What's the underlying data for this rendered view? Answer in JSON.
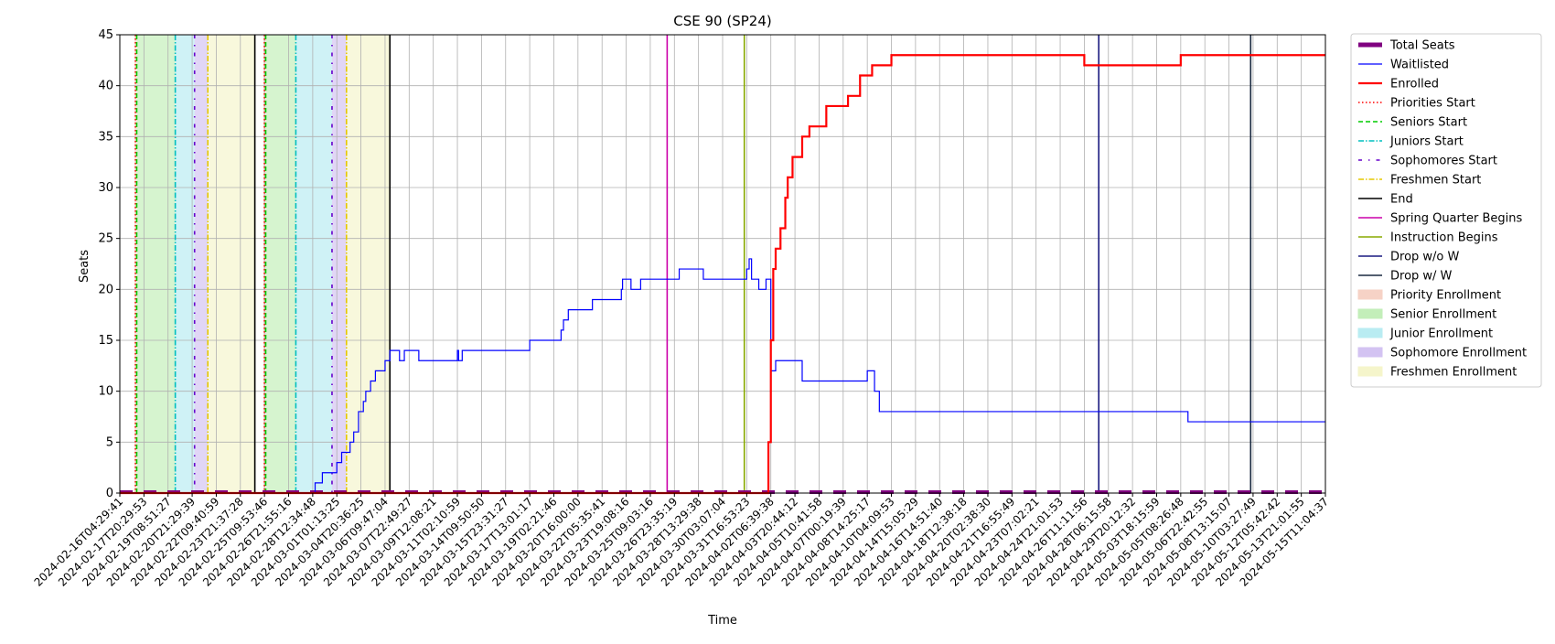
{
  "chart_data": {
    "type": "line",
    "title": "CSE 90 (SP24)",
    "xlabel": "Time",
    "ylabel": "Seats",
    "ylim": [
      0,
      45
    ],
    "y_ticks": [
      0,
      5,
      10,
      15,
      20,
      25,
      30,
      35,
      40,
      45
    ],
    "grid": true,
    "legend_position": "outside right, top",
    "x_tick_labels": [
      "2024-02-16T04:29:41",
      "2024-02-17T20:29:53",
      "2024-02-19T08:51:27",
      "2024-02-20T21:29:39",
      "2024-02-22T09:40:59",
      "2024-02-23T21:37:28",
      "2024-02-25T09:53:46",
      "2024-02-26T21:55:16",
      "2024-02-28T12:34:48",
      "2024-03-01T01:13:25",
      "2024-03-04T20:36:25",
      "2024-03-06T09:47:04",
      "2024-03-07T22:49:27",
      "2024-03-09T12:08:21",
      "2024-03-11T02:10:59",
      "2024-03-14T09:50:50",
      "2024-03-15T23:31:27",
      "2024-03-17T13:01:17",
      "2024-03-19T02:21:46",
      "2024-03-20T16:00:00",
      "2024-03-22T05:35:41",
      "2024-03-23T19:08:16",
      "2024-03-25T09:03:16",
      "2024-03-26T23:35:19",
      "2024-03-28T13:29:38",
      "2024-03-30T03:07:04",
      "2024-03-31T16:53:23",
      "2024-04-02T06:39:38",
      "2024-04-03T20:44:12",
      "2024-04-05T10:41:58",
      "2024-04-07T00:19:39",
      "2024-04-08T14:25:17",
      "2024-04-10T04:09:53",
      "2024-04-14T15:05:29",
      "2024-04-16T14:51:40",
      "2024-04-18T12:38:18",
      "2024-04-20T02:38:30",
      "2024-04-21T16:55:49",
      "2024-04-23T07:02:21",
      "2024-04-24T21:01:53",
      "2024-04-26T11:11:56",
      "2024-04-28T06:15:58",
      "2024-04-29T20:12:32",
      "2024-05-03T18:15:59",
      "2024-05-05T08:26:48",
      "2024-05-06T22:42:55",
      "2024-05-08T13:15:07",
      "2024-05-10T03:27:49",
      "2024-05-12T05:42:42",
      "2024-05-13T21:01:55",
      "2024-05-15T11:04:37"
    ],
    "series": [
      {
        "name": "Total Seats",
        "color": "#800080",
        "style": "dashed-thick",
        "x_index": [
          0,
          50
        ],
        "values": [
          0,
          0
        ]
      },
      {
        "name": "Waitlisted",
        "color": "#0000ff",
        "style": "step",
        "x_index": [
          0,
          7.6,
          8.1,
          8.4,
          8.6,
          9.0,
          9.2,
          9.45,
          9.55,
          9.7,
          9.9,
          10.1,
          10.2,
          10.4,
          10.6,
          11.0,
          11.2,
          11.4,
          11.6,
          11.8,
          12.4,
          14.0,
          14.05,
          14.2,
          17.0,
          18.3,
          18.4,
          18.6,
          19.6,
          20.8,
          20.85,
          21.2,
          21.6,
          23.2,
          24.2,
          26.0,
          26.1,
          26.2,
          26.5,
          26.8,
          27.0,
          27.2,
          28.3,
          30.8,
          31.0,
          31.3,
          31.5,
          43.0,
          44.3,
          50
        ],
        "values": [
          0,
          0,
          1,
          2,
          2,
          3,
          4,
          4,
          5,
          6,
          8,
          9,
          10,
          11,
          12,
          13,
          14,
          14,
          13,
          14,
          13,
          14,
          13,
          14,
          15,
          16,
          17,
          18,
          19,
          20,
          21,
          20,
          21,
          22,
          21,
          22,
          23,
          21,
          20,
          21,
          12,
          13,
          11,
          11,
          12,
          10,
          8,
          8,
          7,
          7
        ]
      },
      {
        "name": "Enrolled",
        "color": "#ff0000",
        "style": "step",
        "x_index": [
          0,
          26.8,
          26.9,
          27.0,
          27.1,
          27.2,
          27.4,
          27.6,
          27.7,
          27.9,
          28.3,
          28.6,
          29.3,
          30.2,
          30.7,
          31.2,
          32.0,
          40.0,
          44.0,
          50
        ],
        "values": [
          0,
          0,
          5,
          15,
          22,
          24,
          26,
          29,
          31,
          33,
          35,
          36,
          38,
          39,
          41,
          42,
          43,
          42,
          43,
          43
        ]
      }
    ],
    "vertical_lines": [
      {
        "label": "Priorities Start",
        "color": "#ff0000",
        "style": "dotted",
        "x_index": [
          0.65,
          6.0
        ]
      },
      {
        "label": "Seniors Start",
        "color": "#00cc00",
        "style": "dashed",
        "x_index": [
          0.7,
          6.05
        ]
      },
      {
        "label": "Juniors Start",
        "color": "#00bfbf",
        "style": "dashdot",
        "x_index": [
          2.3,
          7.3
        ]
      },
      {
        "label": "Sophomores Start",
        "color": "#6600cc",
        "style": "dashed-dot-sparse",
        "x_index": [
          3.1,
          8.8
        ]
      },
      {
        "label": "Freshmen Start",
        "color": "#e6c800",
        "style": "dashdot",
        "x_index": [
          3.65,
          9.4
        ]
      },
      {
        "label": "End",
        "color": "#000000",
        "style": "solid",
        "x_index": [
          5.6,
          11.2
        ]
      },
      {
        "label": "Spring Quarter Begins",
        "color": "#cc00aa",
        "style": "solid",
        "x_index": [
          22.7
        ]
      },
      {
        "label": "Instruction Begins",
        "color": "#88aa00",
        "style": "solid",
        "x_index": [
          25.9
        ]
      },
      {
        "label": "Drop w/o W",
        "color": "#1a1a80",
        "style": "solid",
        "x_index": [
          40.6
        ]
      },
      {
        "label": "Drop w/ W",
        "color": "#1a2a40",
        "style": "solid",
        "x_index": [
          46.9
        ]
      }
    ],
    "shaded_regions": [
      {
        "label": "Priority Enrollment",
        "color": "#f4c7b8",
        "spans": [
          [
            0.6,
            0.7
          ],
          [
            5.95,
            6.05
          ]
        ]
      },
      {
        "label": "Senior Enrollment",
        "color": "#b5eba8",
        "spans": [
          [
            0.7,
            2.3
          ],
          [
            6.05,
            7.3
          ]
        ]
      },
      {
        "label": "Junior Enrollment",
        "color": "#a8e8ef",
        "spans": [
          [
            2.3,
            3.1
          ],
          [
            7.3,
            8.8
          ]
        ]
      },
      {
        "label": "Sophomore Enrollment",
        "color": "#c9b5ef",
        "spans": [
          [
            3.1,
            3.65
          ],
          [
            8.8,
            9.4
          ]
        ]
      },
      {
        "label": "Freshmen Enrollment",
        "color": "#f3f3bf",
        "spans": [
          [
            3.65,
            5.6
          ],
          [
            9.4,
            11.2
          ]
        ]
      }
    ],
    "legend": [
      {
        "label": "Total Seats",
        "kind": "line",
        "color": "#800080",
        "dash": "",
        "width": 5
      },
      {
        "label": "Waitlisted",
        "kind": "line",
        "color": "#0000ff",
        "dash": "",
        "width": 1.2
      },
      {
        "label": "Enrolled",
        "kind": "line",
        "color": "#ff0000",
        "dash": "",
        "width": 2.2
      },
      {
        "label": "Priorities Start",
        "kind": "line",
        "color": "#ff0000",
        "dash": "1.5,2.5",
        "width": 1.5
      },
      {
        "label": "Seniors Start",
        "kind": "line",
        "color": "#00cc00",
        "dash": "5,3",
        "width": 1.5
      },
      {
        "label": "Juniors Start",
        "kind": "line",
        "color": "#00bfbf",
        "dash": "6,2,1.5,2",
        "width": 1.5
      },
      {
        "label": "Sophomores Start",
        "kind": "line",
        "color": "#6600cc",
        "dash": "4,7,1.5,7",
        "width": 1.5
      },
      {
        "label": "Freshmen Start",
        "kind": "line",
        "color": "#e6c800",
        "dash": "6,2,1.5,2",
        "width": 1.5
      },
      {
        "label": "End",
        "kind": "line",
        "color": "#000000",
        "dash": "",
        "width": 1.5
      },
      {
        "label": "Spring Quarter Begins",
        "kind": "line",
        "color": "#cc00aa",
        "dash": "",
        "width": 1.5
      },
      {
        "label": "Instruction Begins",
        "kind": "line",
        "color": "#88aa00",
        "dash": "",
        "width": 1.5
      },
      {
        "label": "Drop w/o W",
        "kind": "line",
        "color": "#1a1a80",
        "dash": "",
        "width": 1.5
      },
      {
        "label": "Drop w/ W",
        "kind": "line",
        "color": "#1a2a40",
        "dash": "",
        "width": 1.5
      },
      {
        "label": "Priority Enrollment",
        "kind": "patch",
        "color": "#f4c7b8"
      },
      {
        "label": "Senior Enrollment",
        "kind": "patch",
        "color": "#b5eba8"
      },
      {
        "label": "Junior Enrollment",
        "kind": "patch",
        "color": "#a8e8ef"
      },
      {
        "label": "Sophomore Enrollment",
        "kind": "patch",
        "color": "#c9b5ef"
      },
      {
        "label": "Freshmen Enrollment",
        "kind": "patch",
        "color": "#f3f3bf"
      }
    ]
  }
}
